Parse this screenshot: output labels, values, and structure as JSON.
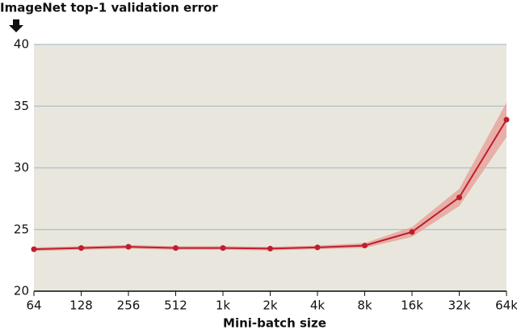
{
  "chart_data": {
    "type": "line",
    "title": "ImageNet top-1 validation error",
    "x_label": "Mini-batch size",
    "categories": [
      "64",
      "128",
      "256",
      "512",
      "1k",
      "2k",
      "4k",
      "8k",
      "16k",
      "32k",
      "64k"
    ],
    "series": [
      {
        "color": "#be1e2d",
        "band_color": "#e6a59d",
        "values": [
          23.4,
          23.5,
          23.6,
          23.5,
          23.5,
          23.45,
          23.55,
          23.7,
          24.8,
          27.6,
          33.9
        ],
        "errors": [
          0.15,
          0.15,
          0.15,
          0.15,
          0.15,
          0.15,
          0.15,
          0.2,
          0.4,
          0.7,
          1.4
        ]
      }
    ],
    "ylim": [
      20,
      40
    ],
    "yticks": [
      20,
      25,
      30,
      35,
      40
    ],
    "grid": true
  }
}
